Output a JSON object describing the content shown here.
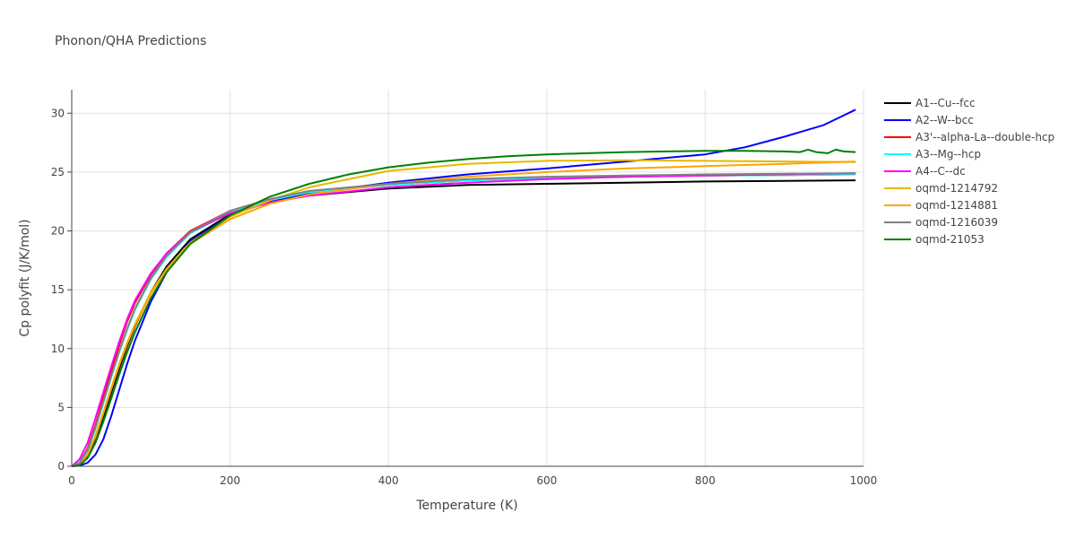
{
  "chart_data": {
    "type": "line",
    "title": "Phonon/QHA Predictions",
    "xlabel": "Temperature (K)",
    "ylabel": "Cp polyfit (J/K/mol)",
    "xlim": [
      0,
      1000
    ],
    "ylim": [
      0,
      32
    ],
    "xticks": [
      0,
      200,
      400,
      600,
      800,
      1000
    ],
    "yticks": [
      0,
      5,
      10,
      15,
      20,
      25,
      30
    ],
    "grid": true,
    "legend_position": "right",
    "series": [
      {
        "name": "A1--Cu--fcc",
        "color": "#000000",
        "x": [
          0,
          10,
          20,
          30,
          40,
          50,
          60,
          70,
          80,
          100,
          120,
          150,
          200,
          250,
          300,
          400,
          500,
          600,
          700,
          800,
          900,
          990
        ],
        "y": [
          0,
          0.2,
          0.9,
          2.3,
          4.2,
          6.3,
          8.3,
          10.2,
          11.9,
          14.8,
          17.0,
          19.3,
          21.4,
          22.5,
          23.0,
          23.6,
          23.9,
          24.0,
          24.1,
          24.2,
          24.25,
          24.3
        ]
      },
      {
        "name": "A2--W--bcc",
        "color": "#0000ff",
        "x": [
          0,
          10,
          20,
          30,
          40,
          50,
          60,
          70,
          80,
          100,
          120,
          150,
          200,
          250,
          300,
          400,
          500,
          600,
          700,
          800,
          850,
          900,
          950,
          990
        ],
        "y": [
          0,
          0.05,
          0.3,
          1.0,
          2.3,
          4.3,
          6.5,
          8.7,
          10.7,
          14.0,
          16.5,
          19.1,
          21.3,
          22.5,
          23.2,
          24.1,
          24.8,
          25.3,
          25.9,
          26.5,
          27.1,
          28.0,
          29.0,
          30.3
        ]
      },
      {
        "name": "A3'--alpha-La--double-hcp",
        "color": "#ff0000",
        "x": [
          0,
          10,
          20,
          30,
          40,
          50,
          60,
          70,
          80,
          100,
          120,
          150,
          200,
          250,
          300,
          400,
          500,
          600,
          700,
          800,
          900,
          990
        ],
        "y": [
          0,
          0.3,
          1.5,
          3.5,
          5.8,
          8.1,
          10.3,
          12.3,
          13.9,
          16.3,
          18.1,
          20.0,
          21.7,
          22.7,
          23.3,
          23.9,
          24.3,
          24.5,
          24.6,
          24.7,
          24.75,
          24.8
        ]
      },
      {
        "name": "A3--Mg--hcp",
        "color": "#00ffff",
        "x": [
          0,
          10,
          20,
          30,
          40,
          50,
          60,
          70,
          80,
          100,
          120,
          150,
          200,
          250,
          300,
          400,
          500,
          600,
          700,
          800,
          900,
          990
        ],
        "y": [
          0,
          0.3,
          1.3,
          3.2,
          5.4,
          7.6,
          9.7,
          11.6,
          13.3,
          15.9,
          17.8,
          19.8,
          21.6,
          22.6,
          23.3,
          23.9,
          24.3,
          24.5,
          24.6,
          24.7,
          24.75,
          24.8
        ]
      },
      {
        "name": "A4--C--dc",
        "color": "#ff00ff",
        "x": [
          0,
          10,
          20,
          30,
          40,
          50,
          60,
          70,
          80,
          100,
          120,
          150,
          200,
          250,
          300,
          400,
          500,
          600,
          700,
          800,
          900,
          990
        ],
        "y": [
          0,
          0.6,
          2.0,
          4.1,
          6.3,
          8.5,
          10.6,
          12.5,
          14.1,
          16.4,
          18.1,
          19.9,
          21.5,
          22.4,
          23.0,
          23.7,
          24.1,
          24.4,
          24.6,
          24.7,
          24.8,
          24.9
        ]
      },
      {
        "name": "oqmd-1214792",
        "color": "#e6b800",
        "x": [
          0,
          10,
          20,
          30,
          40,
          50,
          60,
          70,
          80,
          100,
          120,
          150,
          200,
          250,
          300,
          400,
          500,
          600,
          700,
          800,
          900,
          990
        ],
        "y": [
          0,
          0.2,
          1.0,
          2.6,
          4.6,
          6.7,
          8.7,
          10.5,
          12.1,
          14.8,
          16.8,
          19.0,
          21.2,
          22.6,
          23.7,
          25.1,
          25.7,
          25.95,
          26.0,
          25.95,
          25.9,
          25.85
        ]
      },
      {
        "name": "oqmd-1214881",
        "color": "#ffa500",
        "x": [
          0,
          10,
          20,
          30,
          40,
          50,
          60,
          70,
          80,
          100,
          120,
          150,
          200,
          250,
          300,
          400,
          500,
          600,
          700,
          800,
          900,
          990
        ],
        "y": [
          0,
          0.2,
          1.0,
          2.5,
          4.5,
          6.6,
          8.6,
          10.4,
          12.0,
          14.7,
          16.7,
          18.9,
          21.0,
          22.3,
          23.1,
          24.0,
          24.6,
          25.0,
          25.3,
          25.5,
          25.7,
          25.9
        ]
      },
      {
        "name": "oqmd-1216039",
        "color": "#808080",
        "x": [
          0,
          10,
          20,
          30,
          40,
          50,
          60,
          70,
          80,
          100,
          120,
          150,
          200,
          250,
          300,
          400,
          500,
          600,
          700,
          800,
          900,
          990
        ],
        "y": [
          0,
          0.3,
          1.4,
          3.3,
          5.5,
          7.7,
          9.8,
          11.7,
          13.4,
          16.0,
          17.9,
          19.9,
          21.7,
          22.7,
          23.4,
          24.0,
          24.4,
          24.6,
          24.7,
          24.8,
          24.85,
          24.9
        ]
      },
      {
        "name": "oqmd-21053",
        "color": "#008000",
        "x": [
          0,
          10,
          20,
          30,
          40,
          50,
          60,
          70,
          80,
          100,
          120,
          150,
          200,
          250,
          300,
          350,
          400,
          450,
          500,
          550,
          600,
          650,
          700,
          750,
          800,
          850,
          900,
          920,
          930,
          940,
          955,
          965,
          975,
          990
        ],
        "y": [
          0,
          0.1,
          0.7,
          2.0,
          3.8,
          5.8,
          7.8,
          9.7,
          11.4,
          14.3,
          16.5,
          18.9,
          21.3,
          22.9,
          24.0,
          24.8,
          25.4,
          25.8,
          26.1,
          26.35,
          26.5,
          26.6,
          26.7,
          26.75,
          26.8,
          26.8,
          26.75,
          26.7,
          26.9,
          26.7,
          26.6,
          26.9,
          26.75,
          26.7
        ]
      }
    ]
  }
}
